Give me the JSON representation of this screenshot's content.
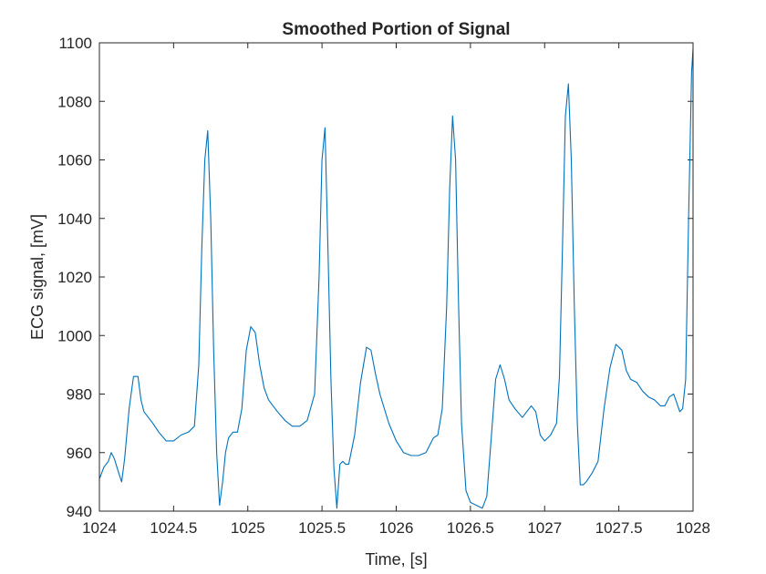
{
  "chart_data": {
    "type": "line",
    "title": "Smoothed Portion of Signal",
    "xlabel": "Time, [s]",
    "ylabel": "ECG signal, [mV]",
    "xlim": [
      1024,
      1028
    ],
    "ylim": [
      940,
      1100
    ],
    "xticks": [
      "1024",
      "1024.5",
      "1025",
      "1025.5",
      "1026",
      "1026.5",
      "1027",
      "1027.5",
      "1028"
    ],
    "yticks": [
      "940",
      "960",
      "980",
      "1000",
      "1020",
      "1040",
      "1060",
      "1080",
      "1100"
    ],
    "grid": false,
    "line_color": "#0072BD",
    "series": [
      {
        "x": [
          1024.0,
          1024.03,
          1024.06,
          1024.08,
          1024.1,
          1024.13,
          1024.15,
          1024.17,
          1024.2,
          1024.23,
          1024.26,
          1024.28,
          1024.3,
          1024.33,
          1024.36,
          1024.4,
          1024.45,
          1024.5,
          1024.55,
          1024.6,
          1024.64,
          1024.67,
          1024.69,
          1024.71,
          1024.73,
          1024.75,
          1024.77,
          1024.79,
          1024.81,
          1024.83,
          1024.85,
          1024.87,
          1024.9,
          1024.93,
          1024.96,
          1024.99,
          1025.02,
          1025.05,
          1025.08,
          1025.11,
          1025.14,
          1025.17,
          1025.2,
          1025.25,
          1025.3,
          1025.35,
          1025.4,
          1025.45,
          1025.48,
          1025.5,
          1025.52,
          1025.54,
          1025.56,
          1025.58,
          1025.6,
          1025.62,
          1025.64,
          1025.66,
          1025.68,
          1025.72,
          1025.76,
          1025.8,
          1025.83,
          1025.86,
          1025.89,
          1025.92,
          1025.95,
          1026.0,
          1026.05,
          1026.1,
          1026.15,
          1026.2,
          1026.25,
          1026.28,
          1026.31,
          1026.34,
          1026.36,
          1026.38,
          1026.4,
          1026.42,
          1026.44,
          1026.47,
          1026.5,
          1026.54,
          1026.58,
          1026.61,
          1026.64,
          1026.67,
          1026.7,
          1026.73,
          1026.76,
          1026.8,
          1026.85,
          1026.88,
          1026.91,
          1026.94,
          1026.97,
          1027.0,
          1027.04,
          1027.08,
          1027.1,
          1027.12,
          1027.14,
          1027.16,
          1027.18,
          1027.2,
          1027.22,
          1027.24,
          1027.26,
          1027.28,
          1027.32,
          1027.36,
          1027.4,
          1027.44,
          1027.48,
          1027.52,
          1027.55,
          1027.58,
          1027.62,
          1027.66,
          1027.7,
          1027.74,
          1027.78,
          1027.81,
          1027.84,
          1027.87,
          1027.89,
          1027.91,
          1027.93,
          1027.95,
          1027.97,
          1027.99,
          1028.0
        ],
        "y": [
          951,
          955,
          957,
          960,
          958,
          953,
          950,
          958,
          975,
          986,
          986,
          978,
          974,
          972,
          970,
          967,
          964,
          964,
          966,
          967,
          969,
          990,
          1030,
          1060,
          1070,
          1040,
          995,
          960,
          942,
          950,
          960,
          965,
          967,
          967,
          975,
          995,
          1003,
          1001,
          990,
          982,
          978,
          976,
          974,
          971,
          969,
          969,
          971,
          980,
          1020,
          1060,
          1071,
          1030,
          985,
          955,
          941,
          956,
          957,
          956,
          956,
          966,
          984,
          996,
          995,
          987,
          980,
          975,
          970,
          964,
          960,
          959,
          959,
          960,
          965,
          966,
          975,
          1010,
          1050,
          1075,
          1060,
          1010,
          970,
          947,
          943,
          942,
          941,
          945,
          965,
          985,
          990,
          985,
          978,
          975,
          972,
          974,
          976,
          974,
          966,
          964,
          966,
          970,
          986,
          1030,
          1075,
          1086,
          1060,
          1010,
          970,
          949,
          949,
          950,
          953,
          957,
          975,
          989,
          997,
          995,
          988,
          985,
          984,
          981,
          979,
          978,
          976,
          976,
          979,
          980,
          977,
          974,
          975,
          985,
          1040,
          1090,
          1098
        ]
      }
    ]
  }
}
